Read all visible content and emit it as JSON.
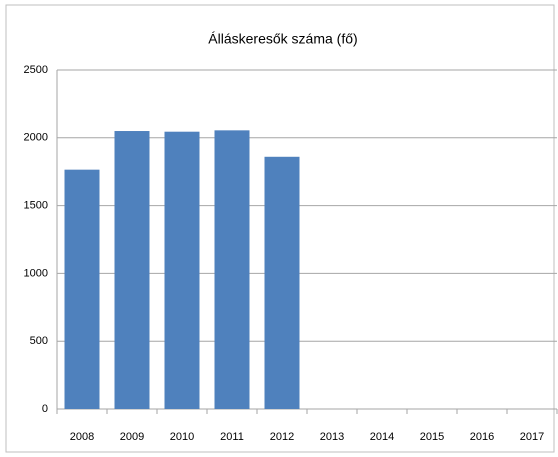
{
  "chart_data": {
    "type": "bar",
    "title": "Álláskeresők száma (fő)",
    "categories": [
      "2008",
      "2009",
      "2010",
      "2011",
      "2012",
      "2013",
      "2014",
      "2015",
      "2016",
      "2017"
    ],
    "values": [
      1765,
      2050,
      2045,
      2055,
      1860,
      null,
      null,
      null,
      null,
      null
    ],
    "color": "#4f81bd",
    "ylim": [
      0,
      2500
    ],
    "yticks": [
      0,
      500,
      1000,
      1500,
      2000,
      2500
    ],
    "grid": true
  }
}
